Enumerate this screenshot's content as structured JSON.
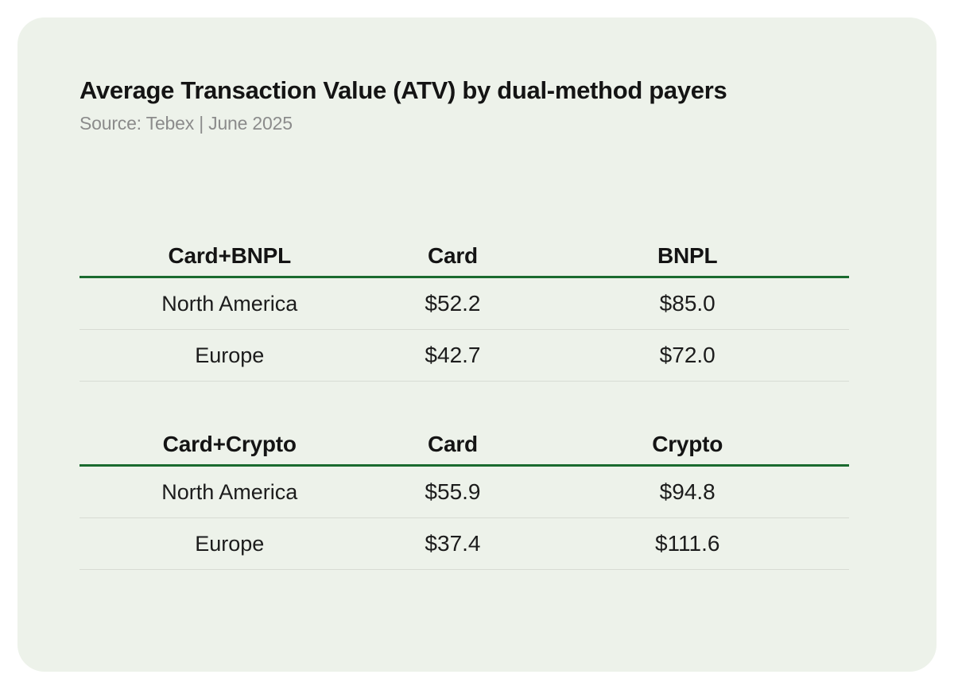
{
  "header": {
    "title": "Average Transaction Value (ATV) by dual-method payers",
    "source": "Source: Tebex | June 2025"
  },
  "colors": {
    "card_background": "#edf2ea",
    "page_background": "#ffffff",
    "header_rule_green": "#1a6b2f",
    "row_separator": "#d8dcd4",
    "title_text": "#141414",
    "source_text": "#8b8b8b"
  },
  "chart_data": {
    "type": "table",
    "title": "Average Transaction Value (ATV) by dual-method payers",
    "source": "Source: Tebex | June 2025",
    "unit": "USD",
    "tables": [
      {
        "name": "Card+BNPL",
        "header": [
          "Card+BNPL",
          "Card",
          "BNPL"
        ],
        "rows": [
          [
            "North America",
            "$52.2",
            "$85.0"
          ],
          [
            "Europe",
            "$42.7",
            "$72.0"
          ]
        ],
        "numeric_values": {
          "North America": {
            "Card": 52.2,
            "BNPL": 85.0
          },
          "Europe": {
            "Card": 42.7,
            "BNPL": 72.0
          }
        }
      },
      {
        "name": "Card+Crypto",
        "header": [
          "Card+Crypto",
          "Card",
          "Crypto"
        ],
        "rows": [
          [
            "North America",
            "$55.9",
            "$94.8"
          ],
          [
            "Europe",
            "$37.4",
            "$111.6"
          ]
        ],
        "numeric_values": {
          "North America": {
            "Card": 55.9,
            "Crypto": 94.8
          },
          "Europe": {
            "Card": 37.4,
            "Crypto": 111.6
          }
        }
      }
    ]
  }
}
